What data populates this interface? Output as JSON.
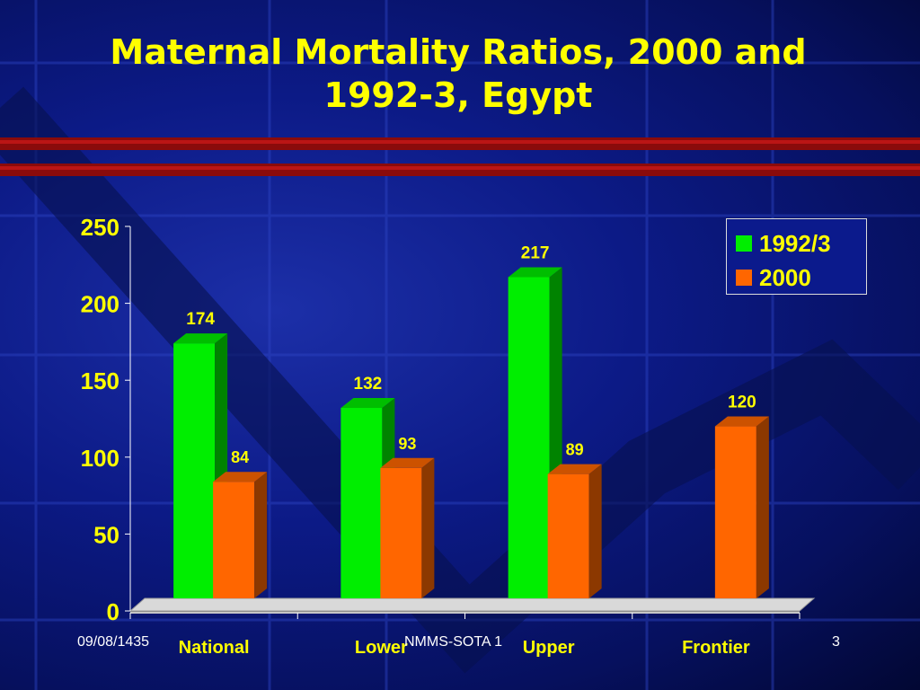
{
  "slide": {
    "title": "Maternal Mortality Ratios, 2000 and 1992-3, Egypt",
    "footer_date": "09/08/1435",
    "footer_center": "NMMS-SOTA 1",
    "page_number": "3"
  },
  "chart_data": {
    "type": "bar",
    "categories": [
      "National",
      "Lower",
      "Upper",
      "Frontier"
    ],
    "series": [
      {
        "name": "1992/3",
        "values": [
          174,
          132,
          217,
          null
        ],
        "color": "#00ee00"
      },
      {
        "name": "2000",
        "values": [
          84,
          93,
          89,
          120
        ],
        "color": "#ff6600"
      }
    ],
    "data_labels": [
      [
        "174",
        "132",
        "217",
        ""
      ],
      [
        "84",
        "93",
        "89",
        "120"
      ]
    ],
    "yticks": [
      0,
      50,
      100,
      150,
      200,
      250
    ],
    "ylim": [
      0,
      250
    ],
    "grid": false,
    "legend_position": "top-right",
    "colors": {
      "text": "#ffff00",
      "axis": "#ffffff"
    }
  }
}
